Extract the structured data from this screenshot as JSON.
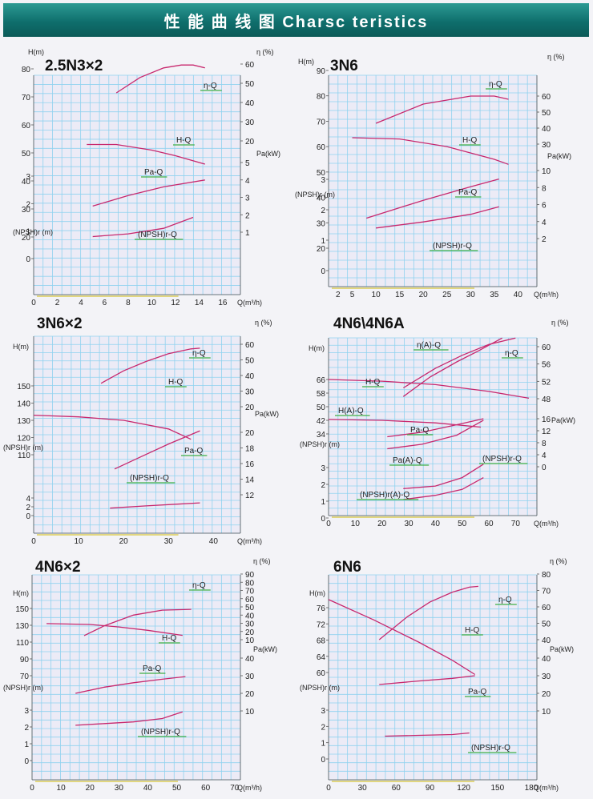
{
  "header": {
    "title": "性 能 曲 线 图 Charsc teristics"
  },
  "colors": {
    "curve": "#c8286e",
    "grid": "#8fd2ef",
    "bg": "#ecebf6",
    "green": "#3fb046",
    "yellow": "#d6c43a",
    "text": "#222222"
  },
  "chart_data": [
    {
      "type": "line",
      "title": "2.5N3×2",
      "xlabel": "Q(m³/h)",
      "x_ticks": [
        0,
        2,
        4,
        6,
        8,
        10,
        12,
        14,
        16
      ],
      "left_axes": [
        {
          "label": "H(m)",
          "ticks": [
            20,
            30,
            40,
            50,
            60,
            70,
            80
          ]
        },
        {
          "label": "(NPSH)r (m)",
          "ticks": [
            0,
            1,
            2,
            3
          ]
        }
      ],
      "right_axes": [
        {
          "label": "η (%)",
          "ticks": [
            20,
            30,
            40,
            50,
            60
          ]
        },
        {
          "label": "Pa(kW)",
          "ticks": [
            1,
            2,
            3,
            4,
            5
          ]
        }
      ],
      "series": [
        {
          "name": "η-Q",
          "x": [
            7,
            9,
            11,
            12.5,
            13.5,
            14.5
          ],
          "y": [
            45,
            53,
            58,
            59.5,
            59.5,
            58
          ]
        },
        {
          "name": "H-Q",
          "x": [
            4.5,
            7,
            10,
            12,
            14.5
          ],
          "y": [
            53,
            53,
            51,
            49,
            46
          ]
        },
        {
          "name": "Pa-Q",
          "x": [
            5,
            8,
            11,
            14.5
          ],
          "y": [
            2.5,
            3.1,
            3.6,
            4.0
          ]
        },
        {
          "name": "(NPSH)r-Q",
          "x": [
            5,
            8,
            11,
            13.5
          ],
          "y": [
            0.8,
            0.9,
            1.1,
            1.5
          ]
        }
      ]
    },
    {
      "type": "line",
      "title": "3N6",
      "xlabel": "Q(m³/h)",
      "x_ticks": [
        2,
        5,
        10,
        15,
        20,
        25,
        30,
        35,
        40
      ],
      "left_axes": [
        {
          "label": "H(m)",
          "ticks": [
            20,
            30,
            40,
            50,
            60,
            70,
            80,
            90
          ]
        },
        {
          "label": "(NPSH)r (m)",
          "ticks": [
            0,
            1,
            2,
            3
          ]
        }
      ],
      "right_axes": [
        {
          "label": "η (%)",
          "ticks": [
            30,
            40,
            50,
            60
          ]
        },
        {
          "label": "Pa(kW)",
          "ticks": [
            2,
            4,
            6,
            8,
            10
          ]
        }
      ],
      "series": [
        {
          "name": "η-Q",
          "x": [
            10,
            20,
            30,
            35,
            38
          ],
          "y": [
            43,
            55,
            60,
            60,
            58
          ]
        },
        {
          "name": "H-Q",
          "x": [
            5,
            15,
            25,
            35,
            38
          ],
          "y": [
            63.5,
            63,
            60,
            55,
            53
          ]
        },
        {
          "name": "Pa-Q",
          "x": [
            8,
            20,
            30,
            36
          ],
          "y": [
            4.4,
            6.5,
            8.1,
            9.0
          ]
        },
        {
          "name": "(NPSH)r-Q",
          "x": [
            10,
            20,
            30,
            36
          ],
          "y": [
            1.4,
            1.6,
            1.85,
            2.1
          ]
        }
      ]
    },
    {
      "type": "line",
      "title": "3N6×2",
      "xlabel": "Q(m³/h)",
      "x_ticks": [
        0,
        10,
        20,
        30,
        40
      ],
      "left_axes": [
        {
          "label": "H(m)",
          "ticks": [
            110,
            120,
            130,
            140,
            150
          ]
        },
        {
          "label": "(NPSH)r (m)",
          "ticks": [
            0,
            2,
            4
          ]
        }
      ],
      "right_axes": [
        {
          "label": "η (%)",
          "ticks": [
            20,
            30,
            40,
            50,
            60
          ]
        },
        {
          "label": "Pa(kW)",
          "ticks": [
            12,
            14,
            16,
            18,
            20
          ]
        }
      ],
      "series": [
        {
          "name": "η-Q",
          "x": [
            15,
            20,
            25,
            30,
            35,
            37
          ],
          "y": [
            35,
            43,
            49,
            54,
            57,
            57.5
          ]
        },
        {
          "name": "H-Q",
          "x": [
            0,
            10,
            20,
            30,
            35
          ],
          "y": [
            133,
            132,
            130,
            125,
            119
          ]
        },
        {
          "name": "Pa-Q",
          "x": [
            18,
            24,
            30,
            37
          ],
          "y": [
            15.3,
            16.9,
            18.5,
            20.2
          ]
        },
        {
          "name": "(NPSH)r-Q",
          "x": [
            17,
            25,
            32,
            37
          ],
          "y": [
            1.7,
            2.2,
            2.6,
            2.9
          ]
        }
      ]
    },
    {
      "type": "line",
      "title": "4N6\\4N6A",
      "xlabel": "Q(m³/h)",
      "x_ticks": [
        0,
        10,
        20,
        30,
        40,
        50,
        60,
        70
      ],
      "left_axes": [
        {
          "label": "H(m)",
          "ticks": [
            34,
            42,
            50,
            58,
            66
          ]
        },
        {
          "label": "(NPSH)r (m)",
          "ticks": [
            0,
            1,
            2,
            3
          ]
        }
      ],
      "right_axes": [
        {
          "label": "η (%)",
          "ticks": [
            48,
            52,
            56,
            60
          ]
        },
        {
          "label": "Pa(kW)",
          "ticks": [
            0,
            4,
            8,
            12,
            16
          ]
        }
      ],
      "series": [
        {
          "name": "η-Q",
          "x": [
            28,
            40,
            50,
            60,
            70
          ],
          "y": [
            50.5,
            55,
            58,
            60.5,
            62
          ]
        },
        {
          "name": "η(A)-Q",
          "x": [
            28,
            38,
            48,
            56,
            65
          ],
          "y": [
            48.5,
            53,
            56.5,
            59,
            62
          ]
        },
        {
          "name": "H-Q",
          "x": [
            0,
            20,
            40,
            60,
            75
          ],
          "y": [
            66,
            65,
            63,
            59,
            55
          ]
        },
        {
          "name": "H(A)-Q",
          "x": [
            0,
            20,
            40,
            57
          ],
          "y": [
            42.5,
            42,
            40.5,
            38
          ]
        },
        {
          "name": "Pa-Q",
          "x": [
            22,
            35,
            48,
            58
          ],
          "y": [
            10,
            11.5,
            14,
            16
          ]
        },
        {
          "name": "Pa(A)-Q",
          "x": [
            22,
            35,
            48,
            58
          ],
          "y": [
            6,
            7.5,
            10.5,
            15.5
          ]
        },
        {
          "name": "(NPSH)r-Q",
          "x": [
            28,
            40,
            50,
            58
          ],
          "y": [
            1.75,
            1.9,
            2.4,
            3.2
          ]
        },
        {
          "name": "(NPSH)r(A)-Q",
          "x": [
            28,
            40,
            50,
            58
          ],
          "y": [
            1.1,
            1.35,
            1.7,
            2.4
          ]
        }
      ]
    },
    {
      "type": "line",
      "title": "4N6×2",
      "xlabel": "Q(m³/h)",
      "x_ticks": [
        0,
        10,
        20,
        30,
        40,
        50,
        60,
        70
      ],
      "left_axes": [
        {
          "label": "H(m)",
          "ticks": [
            70,
            90,
            110,
            130,
            150
          ]
        },
        {
          "label": "(NPSH)r (m)",
          "ticks": [
            0,
            1,
            2,
            3
          ]
        }
      ],
      "right_axes": [
        {
          "label": "η (%)",
          "ticks": [
            10,
            20,
            30,
            40,
            50,
            60,
            70,
            80,
            90
          ]
        },
        {
          "label": "Pa(kW)",
          "ticks": [
            10,
            20,
            30,
            40
          ]
        }
      ],
      "series": [
        {
          "name": "η-Q",
          "x": [
            18,
            25,
            35,
            45,
            55
          ],
          "y": [
            15,
            27,
            40,
            46,
            47
          ]
        },
        {
          "name": "H-Q",
          "x": [
            5,
            20,
            30,
            40,
            52
          ],
          "y": [
            132,
            131,
            128,
            124,
            118
          ]
        },
        {
          "name": "Pa-Q",
          "x": [
            15,
            25,
            35,
            45,
            53
          ],
          "y": [
            20,
            23.5,
            26,
            28,
            29.5
          ]
        },
        {
          "name": "(NPSH)r-Q",
          "x": [
            15,
            25,
            35,
            45,
            52
          ],
          "y": [
            2.1,
            2.2,
            2.3,
            2.5,
            2.9
          ]
        }
      ]
    },
    {
      "type": "line",
      "title": "6N6",
      "xlabel": "Q(m³/h)",
      "x_ticks": [
        0,
        30,
        60,
        90,
        120,
        150,
        180
      ],
      "left_axes": [
        {
          "label": "H(m)",
          "ticks": [
            60,
            64,
            68,
            72,
            76
          ]
        },
        {
          "label": "(NPSH)r (m)",
          "ticks": [
            0,
            1,
            2,
            3
          ]
        }
      ],
      "right_axes": [
        {
          "label": "η (%)",
          "ticks": [
            40,
            50,
            60,
            70,
            80
          ]
        },
        {
          "label": "Pa(kW)",
          "ticks": [
            10,
            20,
            30,
            40
          ]
        }
      ],
      "series": [
        {
          "name": "η-Q",
          "x": [
            45,
            70,
            90,
            110,
            125,
            133
          ],
          "y": [
            40,
            54,
            63,
            69,
            72,
            72.5
          ]
        },
        {
          "name": "H-Q",
          "x": [
            0,
            40,
            80,
            110,
            130
          ],
          "y": [
            78,
            73,
            67.5,
            63,
            59.5
          ]
        },
        {
          "name": "Pa-Q",
          "x": [
            45,
            80,
            110,
            130
          ],
          "y": [
            25,
            27,
            28.5,
            30
          ]
        },
        {
          "name": "(NPSH)r-Q",
          "x": [
            50,
            80,
            110,
            125
          ],
          "y": [
            1.4,
            1.45,
            1.5,
            1.6
          ]
        }
      ]
    }
  ]
}
